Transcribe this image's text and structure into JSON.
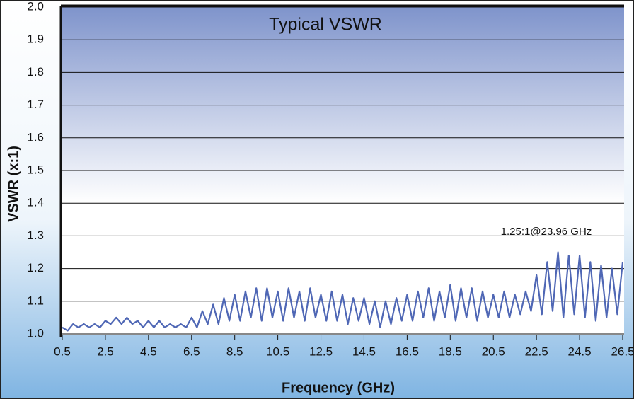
{
  "chart_data": {
    "type": "line",
    "title": "Typical VSWR",
    "x_label": "Frequency (GHz)",
    "y_label": "VSWR (x:1)",
    "annotation": "1.25:1@23.96 GHz",
    "xlim": [
      0.5,
      26.5
    ],
    "xticks": [
      0.5,
      2.5,
      4.5,
      6.5,
      8.5,
      10.5,
      12.5,
      14.5,
      16.5,
      18.5,
      20.5,
      22.5,
      24.5,
      26.5
    ],
    "ylim": [
      1.0,
      2.0
    ],
    "yticks": [
      {
        "value": 1.0,
        "label": "1.0"
      },
      1.1,
      1.2,
      1.3,
      1.4,
      1.5,
      1.6,
      1.7,
      1.8,
      1.9,
      {
        "value": 2.0,
        "label": "2.0"
      }
    ],
    "grid": true,
    "series": [
      {
        "color": "#4f67b5",
        "x": [
          0.5,
          0.75,
          1,
          1.25,
          1.5,
          1.75,
          2,
          2.25,
          2.5,
          2.75,
          3,
          3.25,
          3.5,
          3.75,
          4,
          4.25,
          4.5,
          4.75,
          5,
          5.25,
          5.5,
          5.75,
          6,
          6.25,
          6.5,
          6.75,
          7,
          7.25,
          7.5,
          7.75,
          8,
          8.25,
          8.5,
          8.75,
          9,
          9.25,
          9.5,
          9.75,
          10,
          10.25,
          10.5,
          10.75,
          11,
          11.25,
          11.5,
          11.75,
          12,
          12.25,
          12.5,
          12.75,
          13,
          13.25,
          13.5,
          13.75,
          14,
          14.25,
          14.5,
          14.75,
          15,
          15.25,
          15.5,
          15.75,
          16,
          16.25,
          16.5,
          16.75,
          17,
          17.25,
          17.5,
          17.75,
          18,
          18.25,
          18.5,
          18.75,
          19,
          19.25,
          19.5,
          19.75,
          20,
          20.25,
          20.5,
          20.75,
          21,
          21.25,
          21.5,
          21.75,
          22,
          22.25,
          22.5,
          22.75,
          23,
          23.25,
          23.5,
          23.75,
          24,
          24.25,
          24.5,
          24.75,
          25,
          25.25,
          25.5,
          25.75,
          26,
          26.25,
          26.5
        ],
        "values": [
          1.02,
          1.01,
          1.03,
          1.02,
          1.03,
          1.02,
          1.03,
          1.02,
          1.04,
          1.03,
          1.05,
          1.03,
          1.05,
          1.03,
          1.04,
          1.02,
          1.04,
          1.02,
          1.04,
          1.02,
          1.03,
          1.02,
          1.03,
          1.02,
          1.05,
          1.02,
          1.07,
          1.03,
          1.09,
          1.03,
          1.11,
          1.04,
          1.12,
          1.04,
          1.13,
          1.05,
          1.14,
          1.04,
          1.14,
          1.05,
          1.13,
          1.04,
          1.14,
          1.05,
          1.13,
          1.04,
          1.14,
          1.05,
          1.12,
          1.04,
          1.13,
          1.04,
          1.12,
          1.03,
          1.11,
          1.04,
          1.11,
          1.03,
          1.1,
          1.02,
          1.1,
          1.03,
          1.11,
          1.04,
          1.12,
          1.04,
          1.13,
          1.05,
          1.14,
          1.04,
          1.13,
          1.05,
          1.15,
          1.04,
          1.14,
          1.05,
          1.14,
          1.04,
          1.13,
          1.05,
          1.12,
          1.05,
          1.13,
          1.05,
          1.12,
          1.06,
          1.13,
          1.07,
          1.18,
          1.06,
          1.22,
          1.07,
          1.25,
          1.05,
          1.24,
          1.06,
          1.24,
          1.05,
          1.22,
          1.04,
          1.21,
          1.05,
          1.2,
          1.06,
          1.22
        ]
      }
    ]
  }
}
